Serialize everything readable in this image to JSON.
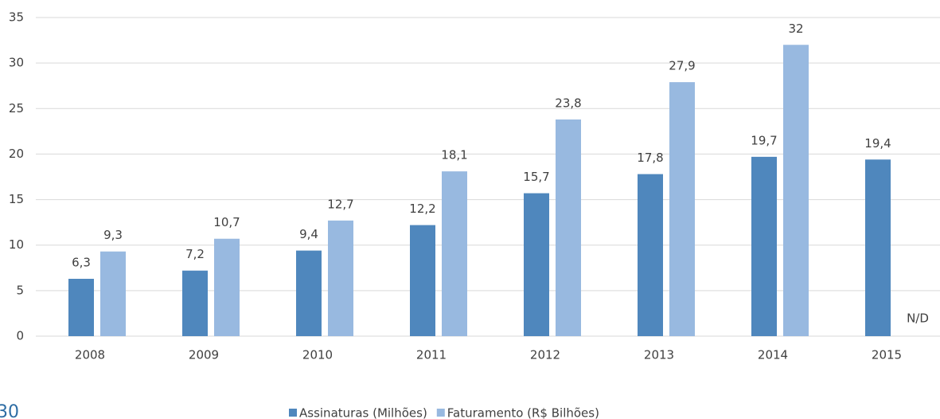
{
  "chart_data": {
    "type": "bar",
    "categories": [
      "2008",
      "2009",
      "2010",
      "2011",
      "2012",
      "2013",
      "2014",
      "2015"
    ],
    "series": [
      {
        "name": "Assinaturas (Milhões)",
        "color": "#4f87bd",
        "values": [
          6.3,
          7.2,
          9.4,
          12.2,
          15.7,
          17.8,
          19.7,
          19.4
        ],
        "value_labels": [
          "6,3",
          "7,2",
          "9,4",
          "12,2",
          "15,7",
          "17,8",
          "19,7",
          "19,4"
        ]
      },
      {
        "name": "Faturamento (R$ Bilhões)",
        "color": "#98b9e0",
        "values": [
          9.3,
          10.7,
          12.7,
          18.1,
          23.8,
          27.9,
          32,
          null
        ],
        "value_labels": [
          "9,3",
          "10,7",
          "12,7",
          "18,1",
          "23,8",
          "27,9",
          "32",
          "N/D"
        ]
      }
    ],
    "ylim": [
      0,
      35
    ],
    "yticks": [
      0,
      5,
      10,
      15,
      20,
      25,
      30,
      35
    ],
    "grid": true,
    "legend": "bottom"
  },
  "page_number": "30"
}
